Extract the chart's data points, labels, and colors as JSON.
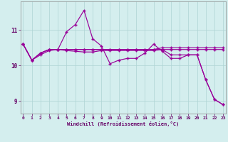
{
  "x": [
    0,
    1,
    2,
    3,
    4,
    5,
    6,
    7,
    8,
    9,
    10,
    11,
    12,
    13,
    14,
    15,
    16,
    17,
    18,
    19,
    20,
    21,
    22,
    23
  ],
  "line1": [
    10.6,
    10.15,
    10.35,
    10.45,
    10.45,
    10.95,
    11.15,
    11.55,
    10.75,
    10.55,
    10.05,
    10.15,
    10.2,
    10.2,
    10.35,
    10.6,
    10.4,
    10.2,
    10.2,
    10.3,
    10.3,
    9.6,
    9.05,
    8.9
  ],
  "line2": [
    10.6,
    10.15,
    10.35,
    10.45,
    10.45,
    10.45,
    10.45,
    10.45,
    10.45,
    10.45,
    10.45,
    10.45,
    10.45,
    10.45,
    10.45,
    10.45,
    10.5,
    10.5,
    10.5,
    10.5,
    10.5,
    10.5,
    10.5,
    10.5
  ],
  "line3": [
    10.6,
    10.15,
    10.35,
    10.45,
    10.45,
    10.45,
    10.45,
    10.45,
    10.45,
    10.45,
    10.45,
    10.45,
    10.45,
    10.45,
    10.45,
    10.45,
    10.45,
    10.3,
    10.3,
    10.3,
    10.3,
    9.6,
    9.05,
    8.9
  ],
  "line4": [
    10.6,
    10.15,
    10.3,
    10.42,
    10.45,
    10.42,
    10.4,
    10.38,
    10.38,
    10.42,
    10.42,
    10.42,
    10.42,
    10.42,
    10.42,
    10.42,
    10.45,
    10.45,
    10.45,
    10.45,
    10.45,
    10.45,
    10.45,
    10.45
  ],
  "xlim": [
    -0.3,
    23.3
  ],
  "ylim": [
    8.65,
    11.8
  ],
  "yticks": [
    9,
    10,
    11
  ],
  "xticks": [
    0,
    1,
    2,
    3,
    4,
    5,
    6,
    7,
    8,
    9,
    10,
    11,
    12,
    13,
    14,
    15,
    16,
    17,
    18,
    19,
    20,
    21,
    22,
    23
  ],
  "xlabel": "Windchill (Refroidissement éolien,°C)",
  "color": "#990099",
  "bg_color": "#d4eeee",
  "grid_color": "#aed4d4",
  "marker": "+"
}
